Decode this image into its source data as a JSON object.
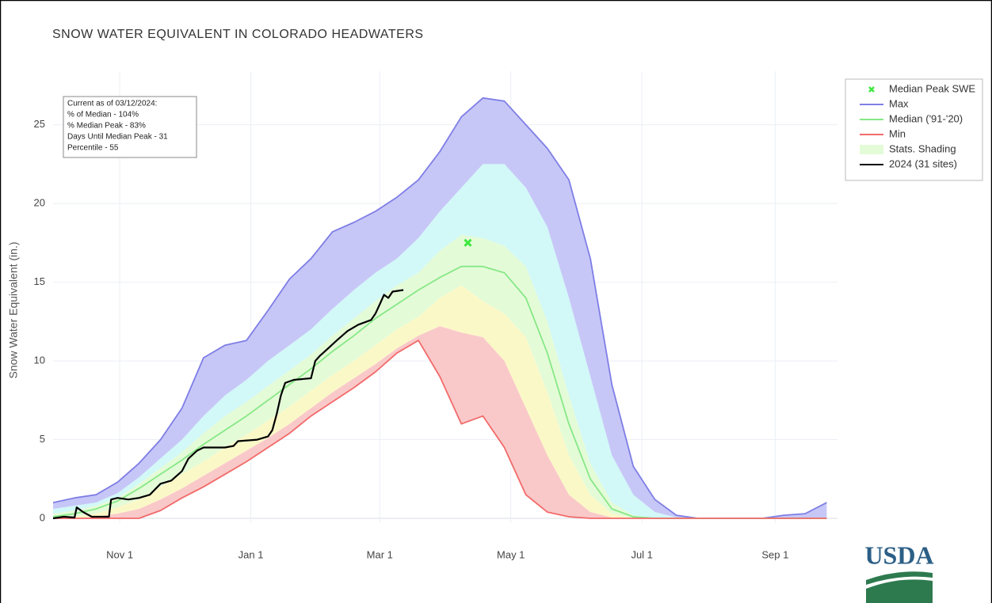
{
  "chart_data": {
    "type": "line",
    "title": "SNOW WATER EQUIVALENT IN COLORADO HEADWATERS",
    "y_label": "Snow Water Equivalent (in.)",
    "xlim": [
      0,
      365
    ],
    "ylim": [
      -0.3,
      28.4
    ],
    "xticks": [
      {
        "value": 31,
        "label": "Nov 1"
      },
      {
        "value": 92,
        "label": "Jan 1"
      },
      {
        "value": 152,
        "label": "Mar 1"
      },
      {
        "value": 213,
        "label": "May 1"
      },
      {
        "value": 274,
        "label": "Jul 1"
      },
      {
        "value": 336,
        "label": "Sep 1"
      }
    ],
    "yticks": [
      0,
      5,
      10,
      15,
      20,
      25
    ],
    "grid": true,
    "x": [
      0,
      10,
      20,
      30,
      40,
      50,
      60,
      70,
      80,
      90,
      100,
      110,
      120,
      130,
      140,
      150,
      160,
      170,
      180,
      190,
      200,
      210,
      220,
      230,
      240,
      250,
      260,
      270,
      280,
      290,
      300,
      310,
      320,
      330,
      340,
      350,
      360
    ],
    "series": [
      {
        "name": "Max",
        "color": "#7e7ee6",
        "values": [
          1.0,
          1.3,
          1.5,
          2.3,
          3.5,
          5.0,
          7.0,
          10.2,
          11.0,
          11.3,
          13.2,
          15.2,
          16.5,
          18.2,
          18.8,
          19.5,
          20.4,
          21.5,
          23.3,
          25.5,
          26.7,
          26.5,
          25.0,
          23.5,
          21.5,
          16.5,
          8.5,
          3.3,
          1.2,
          0.2,
          0,
          0,
          0,
          0,
          0.2,
          0.3,
          1.0
        ]
      },
      {
        "name": "Median ('91-'20)",
        "color": "#86e886",
        "values": [
          0.1,
          0.3,
          0.6,
          1.1,
          1.9,
          2.8,
          3.7,
          4.7,
          5.6,
          6.5,
          7.5,
          8.5,
          9.5,
          10.6,
          11.6,
          12.7,
          13.6,
          14.5,
          15.3,
          16.0,
          16.0,
          15.6,
          14.0,
          10.5,
          6.0,
          2.5,
          0.6,
          0.1,
          0,
          0,
          0,
          0,
          0,
          0,
          0,
          0,
          0
        ]
      },
      {
        "name": "Min",
        "color": "#f26a6a",
        "values": [
          0,
          0,
          0,
          0,
          0,
          0.5,
          1.3,
          2.0,
          2.8,
          3.6,
          4.5,
          5.4,
          6.5,
          7.4,
          8.3,
          9.3,
          10.5,
          11.3,
          9.0,
          6.0,
          6.5,
          4.5,
          1.5,
          0.4,
          0.1,
          0,
          0,
          0,
          0,
          0,
          0,
          0,
          0,
          0,
          0,
          0,
          0
        ]
      },
      {
        "name": "2024 (31 sites)",
        "color": "#000000",
        "x": [
          0,
          5,
          10,
          11,
          14,
          18,
          26,
          27,
          30,
          35,
          40,
          45,
          50,
          55,
          60,
          63,
          67,
          70,
          80,
          84,
          86,
          95,
          100,
          102,
          104,
          106,
          108,
          112,
          120,
          122,
          124,
          128,
          132,
          137,
          142,
          148,
          150,
          152,
          154,
          156,
          158,
          163
        ],
        "values": [
          0,
          0.1,
          0.05,
          0.7,
          0.4,
          0.1,
          0.1,
          1.2,
          1.3,
          1.2,
          1.3,
          1.5,
          2.2,
          2.4,
          3.0,
          3.8,
          4.3,
          4.5,
          4.5,
          4.6,
          4.9,
          5.0,
          5.2,
          5.6,
          6.6,
          7.8,
          8.6,
          8.8,
          8.9,
          10.0,
          10.3,
          10.8,
          11.3,
          11.9,
          12.3,
          12.6,
          13.0,
          13.6,
          14.2,
          14.0,
          14.4,
          14.5
        ]
      }
    ],
    "median_peak": {
      "name": "Median Peak SWE",
      "color": "#3ee83e",
      "x": 193,
      "y": 17.5
    },
    "stats_shading": {
      "name": "Stats. Shading",
      "color": "#e4fbd8",
      "bounds": [
        [
          0.6,
          0.8,
          1.0,
          1.6,
          2.6,
          3.8,
          5.0,
          6.5,
          7.8,
          8.8,
          10.0,
          11.0,
          12.0,
          13.3,
          14.5,
          15.6,
          16.5,
          17.8,
          19.5,
          21.0,
          22.5,
          22.5,
          21.0,
          18.5,
          14.0,
          9.0,
          4.0,
          1.5,
          0.4,
          0.05,
          0,
          0,
          0,
          0,
          0,
          0,
          0
        ],
        [
          0.3,
          0.5,
          0.8,
          1.3,
          2.2,
          3.2,
          4.2,
          5.4,
          6.5,
          7.4,
          8.4,
          9.4,
          10.4,
          11.6,
          12.7,
          13.8,
          14.8,
          15.6,
          17.0,
          18.0,
          17.8,
          17.3,
          16.0,
          12.5,
          7.8,
          3.5,
          1.0,
          0.2,
          0,
          0,
          0,
          0,
          0,
          0,
          0,
          0,
          0
        ],
        [
          0,
          0.1,
          0.3,
          0.7,
          1.2,
          2.0,
          2.8,
          3.6,
          4.5,
          5.3,
          6.2,
          7.1,
          8.1,
          9.1,
          10.0,
          11.0,
          12.0,
          12.8,
          14.0,
          14.8,
          13.8,
          13.0,
          11.5,
          8.0,
          4.0,
          1.5,
          0.3,
          0,
          0,
          0,
          0,
          0,
          0,
          0,
          0,
          0,
          0
        ],
        [
          0,
          0,
          0.1,
          0.3,
          0.6,
          1.2,
          1.9,
          2.7,
          3.5,
          4.3,
          5.1,
          6.0,
          7.0,
          8.0,
          8.9,
          9.8,
          10.8,
          11.6,
          12.2,
          11.8,
          11.5,
          10.0,
          7.0,
          4.0,
          1.5,
          0.4,
          0.05,
          0,
          0,
          0,
          0,
          0,
          0,
          0,
          0,
          0,
          0
        ]
      ],
      "band_colors": [
        "#c7c7f7",
        "#d2f8f8",
        "#e4fbd8",
        "#fbf8c8",
        "#f9c9c9"
      ]
    },
    "annotation": [
      "Current as of 03/12/2024:",
      "% of Median - 104%",
      "% Median Peak - 83%",
      "Days Until Median Peak - 31",
      "Percentile - 55"
    ],
    "logo": "USDA"
  }
}
